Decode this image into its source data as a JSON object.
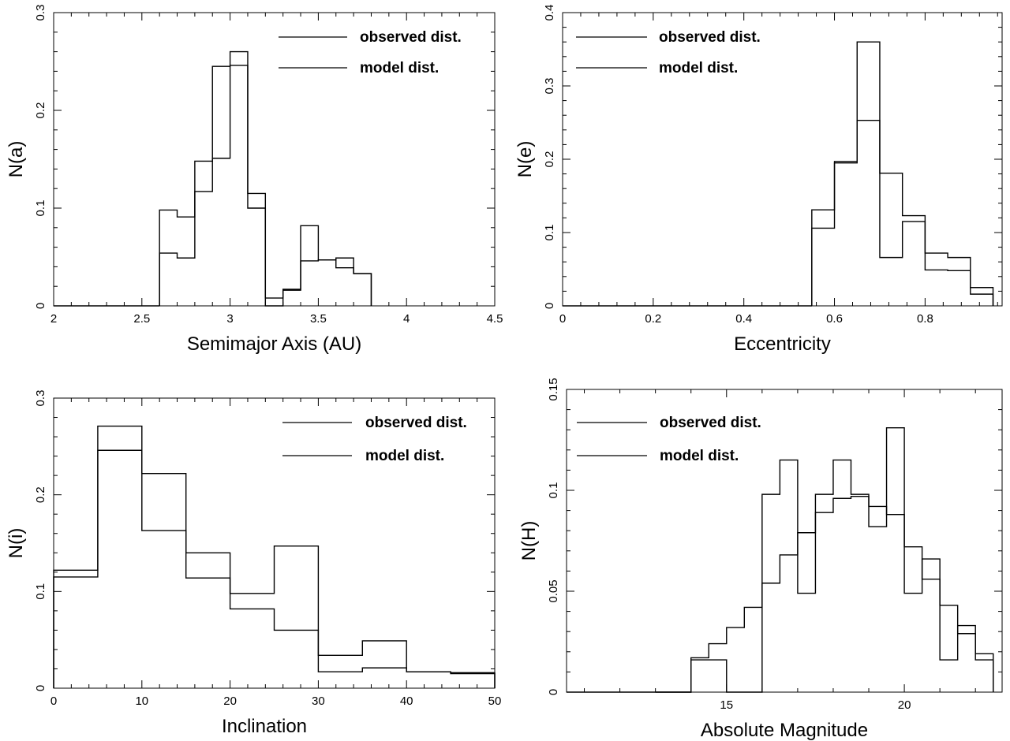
{
  "chart_data": [
    {
      "type": "histogram",
      "xlabel": "Semimajor Axis (AU)",
      "ylabel": "N(a)",
      "xlim": [
        2,
        4.5
      ],
      "ylim": [
        0,
        0.3
      ],
      "xticks": [
        "2",
        "2.5",
        "3",
        "3.5",
        "4",
        "4.5"
      ],
      "yticks": [
        "0",
        "0.1",
        "0.2",
        "0.3"
      ],
      "legend": [
        "observed dist.",
        "model dist."
      ],
      "legend_position": "top-right",
      "bins": [
        2.6,
        2.7,
        2.8,
        2.9,
        3.0,
        3.1,
        3.2,
        3.3,
        3.4,
        3.5,
        3.6,
        3.7,
        3.8
      ],
      "series": [
        {
          "name": "observed dist.",
          "values": [
            0.098,
            0.091,
            0.148,
            0.245,
            0.26,
            0.115,
            0.008,
            0.016,
            0.082,
            0.047,
            0.049,
            0.033
          ]
        },
        {
          "name": "model dist.",
          "values": [
            0.054,
            0.049,
            0.117,
            0.151,
            0.246,
            0.1,
            0.0,
            0.017,
            0.046,
            0.047,
            0.039,
            0.033
          ]
        }
      ]
    },
    {
      "type": "histogram",
      "xlabel": "Eccentricity",
      "ylabel": "N(e)",
      "xlim": [
        0,
        0.97
      ],
      "ylim": [
        0,
        0.4
      ],
      "xticks": [
        "0",
        "0.2",
        "0.4",
        "0.6",
        "0.8"
      ],
      "yticks": [
        "0",
        "0.1",
        "0.2",
        "0.3",
        "0.4"
      ],
      "legend": [
        "observed dist.",
        "model dist."
      ],
      "legend_position": "top-left",
      "bins": [
        0.55,
        0.6,
        0.65,
        0.7,
        0.75,
        0.8,
        0.85,
        0.9,
        0.95
      ],
      "series": [
        {
          "name": "observed dist.",
          "values": [
            0.131,
            0.197,
            0.36,
            0.181,
            0.123,
            0.072,
            0.066,
            0.025
          ]
        },
        {
          "name": "model dist.",
          "values": [
            0.106,
            0.195,
            0.253,
            0.066,
            0.115,
            0.049,
            0.048,
            0.016
          ]
        }
      ]
    },
    {
      "type": "histogram",
      "xlabel": "Inclination",
      "ylabel": "N(i)",
      "xlim": [
        0,
        50
      ],
      "ylim": [
        0,
        0.3
      ],
      "xticks": [
        "0",
        "10",
        "20",
        "30",
        "40",
        "50"
      ],
      "yticks": [
        "0",
        "0.1",
        "0.2",
        "0.3"
      ],
      "legend": [
        "observed dist.",
        "model dist."
      ],
      "legend_position": "top-right",
      "bins": [
        0,
        5,
        10,
        15,
        20,
        25,
        30,
        35,
        40,
        45,
        50
      ],
      "series": [
        {
          "name": "observed dist.",
          "values": [
            0.115,
            0.271,
            0.222,
            0.14,
            0.098,
            0.147,
            0.034,
            0.049,
            0.017,
            0.016
          ]
        },
        {
          "name": "model dist.",
          "values": [
            0.122,
            0.246,
            0.163,
            0.114,
            0.082,
            0.06,
            0.017,
            0.021,
            0.017,
            0.015
          ]
        }
      ]
    },
    {
      "type": "histogram",
      "xlabel": "Absolute Magnitude",
      "ylabel": "N(H)",
      "xlim": [
        10.5,
        22.75
      ],
      "ylim": [
        0,
        0.15
      ],
      "xticks": [
        "15",
        "20"
      ],
      "yticks": [
        "0",
        "0.05",
        "0.1",
        "0.15"
      ],
      "legend": [
        "observed dist.",
        "model dist."
      ],
      "legend_position": "top-left",
      "bins": [
        13,
        14,
        14.5,
        15,
        15.5,
        16,
        16.5,
        17,
        17.5,
        18,
        18.5,
        19,
        19.5,
        20,
        20.5,
        21,
        21.5,
        22,
        22.5
      ],
      "series": [
        {
          "name": "observed dist.",
          "values": [
            0,
            0.016,
            0.016,
            0,
            0,
            0.098,
            0.115,
            0.049,
            0.098,
            0.115,
            0.098,
            0.082,
            0.131,
            0.049,
            0.066,
            0.016,
            0.033,
            0.016
          ]
        },
        {
          "name": "model dist.",
          "values": [
            0,
            0.017,
            0.024,
            0.032,
            0.042,
            0.054,
            0.068,
            0.079,
            0.089,
            0.096,
            0.097,
            0.092,
            0.088,
            0.072,
            0.056,
            0.043,
            0.029,
            0.019
          ]
        }
      ]
    }
  ]
}
